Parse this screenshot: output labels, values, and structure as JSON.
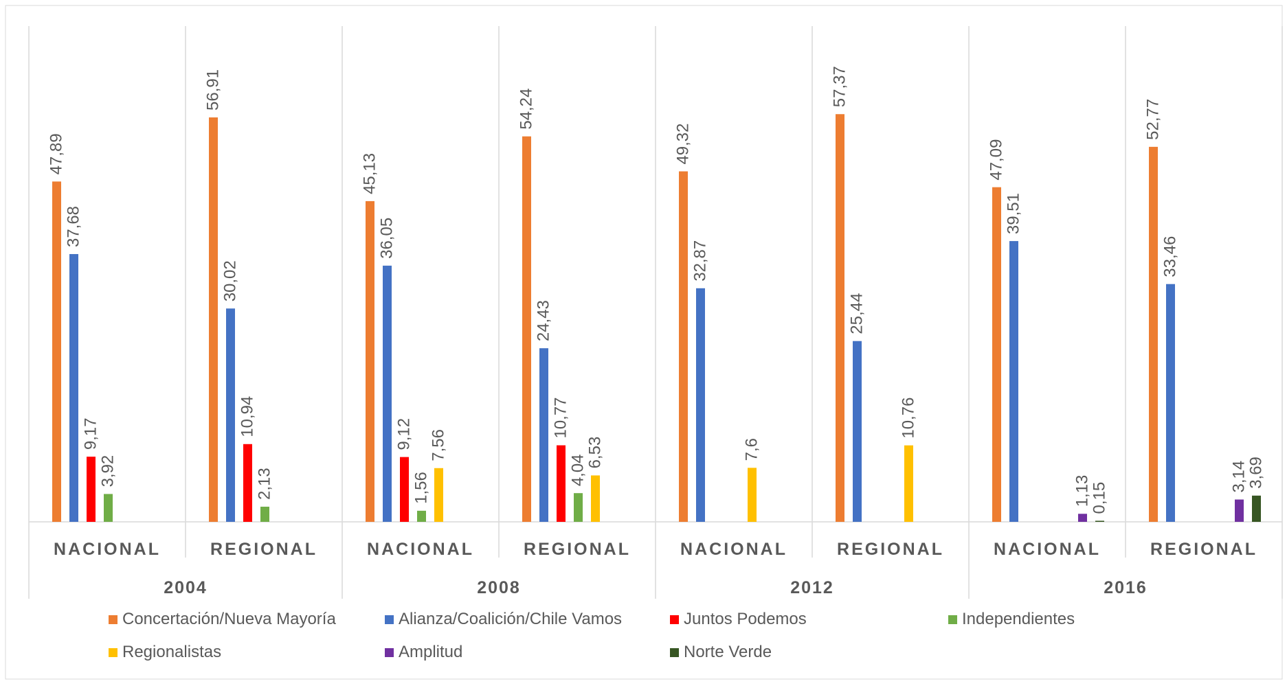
{
  "chart_data": {
    "type": "bar",
    "title": "",
    "xlabel": "",
    "ylabel": "",
    "ylim": [
      0,
      60
    ],
    "grid": false,
    "legend_position": "bottom",
    "groups": [
      {
        "year": "2004",
        "subgroups": [
          "NACIONAL",
          "REGIONAL"
        ]
      },
      {
        "year": "2008",
        "subgroups": [
          "NACIONAL",
          "REGIONAL"
        ]
      },
      {
        "year": "2012",
        "subgroups": [
          "NACIONAL",
          "REGIONAL"
        ]
      },
      {
        "year": "2016",
        "subgroups": [
          "NACIONAL",
          "REGIONAL"
        ]
      }
    ],
    "series": [
      {
        "name": "Concertación/Nueva Mayoría",
        "color": "#ED7D31",
        "values": [
          47.89,
          56.91,
          45.13,
          54.24,
          49.32,
          57.37,
          47.09,
          52.77
        ],
        "labels": [
          "47,89",
          "56,91",
          "45,13",
          "54,24",
          "49,32",
          "57,37",
          "47,09",
          "52,77"
        ]
      },
      {
        "name": "Alianza/Coalición/Chile Vamos",
        "color": "#4472C4",
        "values": [
          37.68,
          30.02,
          36.05,
          24.43,
          32.87,
          25.44,
          39.51,
          33.46
        ],
        "labels": [
          "37,68",
          "30,02",
          "36,05",
          "24,43",
          "32,87",
          "25,44",
          "39,51",
          "33,46"
        ]
      },
      {
        "name": "Juntos Podemos",
        "color": "#FF0000",
        "values": [
          9.17,
          10.94,
          9.12,
          10.77,
          null,
          null,
          null,
          null
        ],
        "labels": [
          "9,17",
          "10,94",
          "9,12",
          "10,77",
          null,
          null,
          null,
          null
        ]
      },
      {
        "name": "Independientes",
        "color": "#70AD47",
        "values": [
          3.92,
          2.13,
          1.56,
          4.04,
          null,
          null,
          null,
          null
        ],
        "labels": [
          "3,92",
          "2,13",
          "1,56",
          "4,04",
          null,
          null,
          null,
          null
        ]
      },
      {
        "name": "Regionalistas",
        "color": "#FFC000",
        "values": [
          null,
          null,
          7.56,
          6.53,
          7.6,
          10.76,
          null,
          null
        ],
        "labels": [
          null,
          null,
          "7,56",
          "6,53",
          "7,6",
          "10,76",
          null,
          null
        ]
      },
      {
        "name": "Amplitud",
        "color": "#7030A0",
        "values": [
          null,
          null,
          null,
          null,
          null,
          null,
          1.13,
          3.14
        ],
        "labels": [
          null,
          null,
          null,
          null,
          null,
          null,
          "1,13",
          "3,14"
        ]
      },
      {
        "name": "Norte Verde",
        "color": "#375623",
        "values": [
          null,
          null,
          null,
          null,
          null,
          null,
          0.15,
          3.69
        ],
        "labels": [
          null,
          null,
          null,
          null,
          null,
          null,
          "0,15",
          "3,69"
        ]
      }
    ]
  }
}
